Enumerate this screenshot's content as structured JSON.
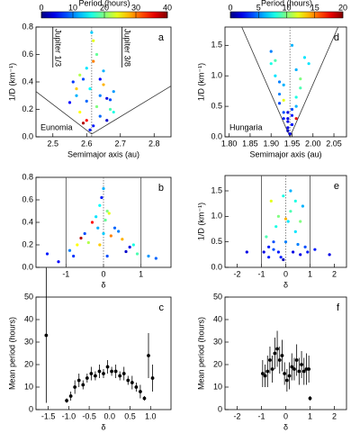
{
  "chart_data": [
    {
      "type": "scatter",
      "panel_label": "a",
      "annotation": "Eunomia",
      "x_label": "Semimajor axis (au)",
      "y_label": "1/D (km⁻¹)",
      "colorbar": {
        "label": "Period (hours)",
        "lim": [
          0,
          40
        ],
        "ticks": [
          0,
          10,
          20,
          30,
          40
        ]
      },
      "xlim": [
        2.45,
        2.85
      ],
      "xticks": [
        2.5,
        2.6,
        2.7,
        2.8
      ],
      "ylim": [
        0,
        0.8
      ],
      "yticks": [
        {
          "value": 0,
          "label": "0.0"
        },
        0.2,
        0.4,
        0.6,
        0.8
      ],
      "center": 2.615,
      "resonances": [
        {
          "x": 2.5,
          "label": "Jupiter 1/3"
        },
        {
          "x": 2.705,
          "label": "Jupiter 3/8"
        }
      ],
      "boundary_x": [
        2.45,
        2.615,
        2.85
      ],
      "boundary_y": [
        0.33,
        0.02,
        0.37
      ],
      "x": [
        2.55,
        2.57,
        2.58,
        2.59,
        2.6,
        2.61,
        2.62,
        2.63,
        2.64,
        2.65,
        2.66,
        2.67,
        2.68,
        2.56,
        2.58,
        2.6,
        2.62,
        2.64,
        2.66,
        2.68,
        2.59,
        2.61,
        2.63,
        2.65,
        2.62,
        2.6,
        2.64,
        2.615,
        2.57,
        2.67
      ],
      "values": [
        0.25,
        0.3,
        0.18,
        0.42,
        0.12,
        0.35,
        0.08,
        0.22,
        0.15,
        0.38,
        0.28,
        0.2,
        0.33,
        0.4,
        0.45,
        0.5,
        0.55,
        0.3,
        0.12,
        0.18,
        0.1,
        0.05,
        0.6,
        0.48,
        0.7,
        0.26,
        0.42,
        0.76,
        0.35,
        0.27
      ],
      "period": [
        5,
        12,
        25,
        8,
        35,
        15,
        6,
        20,
        9,
        28,
        4,
        18,
        11,
        7,
        22,
        14,
        30,
        10,
        3,
        16,
        38,
        6,
        19,
        12,
        24,
        9,
        5,
        13,
        27,
        8
      ]
    },
    {
      "type": "scatter",
      "panel_label": "d",
      "annotation": "Hungaria",
      "x_label": "Semimajor axis (au)",
      "y_label": "1/D (km⁻¹)",
      "colorbar": {
        "label": "Period (hours)",
        "lim": [
          0,
          20
        ],
        "ticks": [
          0,
          5,
          10,
          15,
          20
        ]
      },
      "xlim": [
        1.79,
        2.08
      ],
      "xticks": [
        {
          "value": 1.8,
          "label": "1.80"
        },
        1.85,
        {
          "value": 1.9,
          "label": "1.90"
        },
        1.95,
        {
          "value": 2,
          "label": "2.00"
        },
        2.05
      ],
      "ylim": [
        0,
        1.8
      ],
      "yticks": [
        {
          "value": 0,
          "label": "0.0"
        },
        0.5,
        {
          "value": 1,
          "label": "1.0"
        },
        1.5
      ],
      "center": 1.945,
      "boundary_x": [
        1.83,
        1.945,
        2.06
      ],
      "boundary_y": [
        1.8,
        0,
        1.8
      ],
      "x": [
        1.9,
        1.92,
        1.94,
        1.95,
        1.96,
        1.93,
        1.91,
        1.97,
        1.94,
        1.95,
        1.93,
        1.96,
        1.92,
        1.98,
        1.94,
        1.95,
        1.9,
        1.97,
        1.93,
        1.96,
        1.94,
        1.92,
        1.95,
        1.99,
        1.91,
        1.945,
        1.96,
        1.93,
        1.95,
        1.94
      ],
      "values": [
        1.2,
        0.9,
        0.3,
        0.2,
        0.5,
        0.4,
        1.0,
        0.8,
        0.15,
        0.35,
        0.6,
        1.1,
        0.7,
        1.3,
        0.25,
        0.45,
        1.4,
        0.95,
        0.3,
        0.65,
        0.1,
        0.55,
        1.5,
        1.2,
        1.25,
        0.05,
        0.3,
        0.85,
        0.2,
        0.4
      ],
      "period": [
        8,
        5,
        2,
        3,
        6,
        4,
        7,
        9,
        2,
        3,
        12,
        6,
        5,
        7,
        2,
        4,
        5,
        10,
        3,
        8,
        1,
        4,
        6,
        7,
        9,
        2,
        18,
        6,
        3,
        2
      ]
    },
    {
      "type": "scatter",
      "panel_label": "b",
      "x_label": "δ",
      "xlim": [
        -1.8,
        1.8
      ],
      "xticks": [
        -1,
        0,
        1
      ],
      "ylim": [
        0,
        0.8
      ],
      "yticks": [
        {
          "value": 0,
          "label": "0.0"
        },
        0.2,
        0.4,
        0.6,
        0.8
      ],
      "center": 0,
      "vlines": [
        -1,
        1
      ],
      "x": [
        -1.5,
        -0.9,
        -0.7,
        -0.5,
        -0.3,
        -0.1,
        0.0,
        0.1,
        0.3,
        0.5,
        0.7,
        0.9,
        1.2,
        -0.8,
        -0.4,
        -0.2,
        0.2,
        0.4,
        0.6,
        0.8,
        -0.6,
        -0.05,
        0.05,
        -0.15,
        0.15,
        1.4,
        -1.2,
        0.0,
        -0.1,
        0.1
      ],
      "values": [
        0.12,
        0.15,
        0.2,
        0.3,
        0.4,
        0.55,
        0.7,
        0.5,
        0.35,
        0.25,
        0.18,
        0.12,
        0.1,
        0.1,
        0.22,
        0.45,
        0.28,
        0.32,
        0.14,
        0.2,
        0.26,
        0.62,
        0.42,
        0.35,
        0.48,
        0.08,
        0.05,
        0.3,
        0.2,
        0.1
      ],
      "period": [
        6,
        10,
        25,
        8,
        35,
        15,
        12,
        20,
        9,
        28,
        4,
        18,
        11,
        7,
        22,
        14,
        30,
        10,
        3,
        16,
        38,
        6,
        19,
        12,
        24,
        9,
        5,
        13,
        27,
        8
      ]
    },
    {
      "type": "scatter",
      "panel_label": "e",
      "x_label": "δ",
      "y_label": "1/D (km⁻¹)",
      "xlim": [
        -2.5,
        2.5
      ],
      "xticks": [
        -2,
        -1,
        0,
        1,
        2
      ],
      "ylim": [
        0,
        1.8
      ],
      "yticks": [
        {
          "value": 0,
          "label": "0.0"
        },
        0.5,
        {
          "value": 1,
          "label": "1.0"
        },
        1.5
      ],
      "center": 0,
      "vlines": [
        -1,
        1
      ],
      "x": [
        -0.9,
        -0.7,
        -0.5,
        -0.3,
        -0.1,
        0.1,
        0.3,
        0.5,
        0.7,
        0.9,
        -0.8,
        -0.6,
        -0.4,
        -0.2,
        0.0,
        0.2,
        0.4,
        0.6,
        0.8,
        -1.6,
        1.2,
        1.8,
        -0.1,
        0.2,
        -0.5,
        0.6,
        -0.3,
        0.4,
        0.0,
        -0.7
      ],
      "values": [
        0.3,
        0.4,
        0.35,
        1.0,
        1.4,
        0.9,
        0.3,
        0.45,
        1.2,
        0.3,
        0.6,
        1.3,
        0.8,
        0.2,
        0.5,
        1.5,
        0.7,
        0.25,
        0.4,
        0.3,
        0.35,
        0.25,
        0.15,
        1.1,
        0.5,
        0.9,
        0.3,
        1.3,
        0.95,
        0.2
      ],
      "period": [
        2,
        3,
        4,
        10,
        8,
        7,
        2,
        5,
        6,
        3,
        9,
        12,
        8,
        3,
        5,
        6,
        7,
        2,
        4,
        2,
        3,
        2,
        1,
        9,
        4,
        10,
        3,
        8,
        14,
        3
      ]
    },
    {
      "type": "errorbar",
      "panel_label": "c",
      "x_label": "δ",
      "y_label": "Mean period (hours)",
      "xlim": [
        -1.8,
        1.5
      ],
      "xticks": [
        -1.5,
        {
          "value": -1,
          "label": "-1.0"
        },
        -0.5,
        {
          "value": 0,
          "label": "0.0"
        },
        0.5,
        {
          "value": 1,
          "label": "1.0"
        }
      ],
      "ylim": [
        0,
        50
      ],
      "yticks": [
        0,
        10,
        20,
        30,
        40,
        50
      ],
      "x": [
        -1.55,
        -1.05,
        -0.95,
        -0.85,
        -0.75,
        -0.65,
        -0.55,
        -0.45,
        -0.35,
        -0.25,
        -0.15,
        -0.05,
        0.05,
        0.15,
        0.25,
        0.35,
        0.45,
        0.55,
        0.65,
        0.75,
        0.85,
        0.95,
        1.05
      ],
      "values": [
        33,
        4,
        6,
        10,
        13,
        11,
        14,
        16,
        15,
        17,
        16,
        19,
        17,
        17,
        15,
        16,
        13,
        12,
        10,
        8,
        5,
        24,
        14
      ],
      "errors": [
        30,
        1,
        2,
        3,
        3,
        2,
        2,
        3,
        2,
        3,
        2,
        3,
        2,
        3,
        2,
        3,
        2,
        3,
        2,
        3,
        1,
        10,
        6
      ]
    },
    {
      "type": "errorbar",
      "panel_label": "f",
      "x_label": "δ",
      "y_label": "Mean period (hours)",
      "xlim": [
        -2.5,
        2.5
      ],
      "xticks": [
        -2,
        -1,
        0,
        1,
        2
      ],
      "ylim": [
        0,
        50
      ],
      "yticks": [
        0,
        10,
        20,
        30,
        40,
        50
      ],
      "x": [
        -0.95,
        -0.85,
        -0.75,
        -0.65,
        -0.55,
        -0.45,
        -0.35,
        -0.25,
        -0.15,
        -0.05,
        0.05,
        0.15,
        0.25,
        0.35,
        0.45,
        0.55,
        0.65,
        0.75,
        0.85,
        0.95,
        1.0
      ],
      "values": [
        16,
        15,
        17,
        22,
        18,
        25,
        27,
        22,
        24,
        16,
        13,
        15,
        19,
        18,
        22,
        17,
        20,
        17,
        18,
        18,
        5
      ],
      "errors": [
        6,
        5,
        7,
        6,
        6,
        7,
        8,
        6,
        7,
        5,
        5,
        6,
        6,
        5,
        7,
        6,
        6,
        6,
        7,
        6,
        1
      ]
    }
  ]
}
